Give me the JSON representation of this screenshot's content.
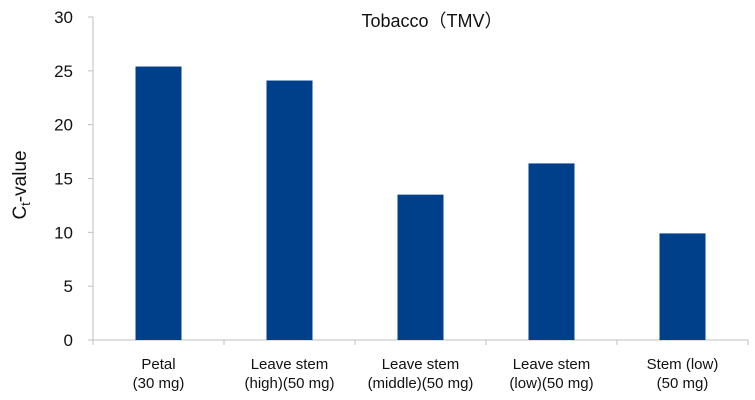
{
  "chart_data": {
    "type": "bar",
    "title": "Tobacco（TMV）",
    "ylabel": "Ct-value",
    "ylabel_main": "C",
    "ylabel_sub": "t",
    "ylabel_rest": "-value",
    "ylim": [
      0,
      30
    ],
    "yticks": [
      "0",
      "5",
      "10",
      "15",
      "20",
      "25",
      "30"
    ],
    "categories": [
      [
        "Petal",
        "(30 mg)"
      ],
      [
        "Leave stem",
        "(high)(50 mg)"
      ],
      [
        "Leave stem",
        "(middle)(50 mg)"
      ],
      [
        "Leave stem",
        "(low)(50 mg)"
      ],
      [
        "Stem (low)",
        "(50 mg)"
      ]
    ],
    "values": [
      25.4,
      24.1,
      13.5,
      16.4,
      9.9
    ],
    "bar_color": "#003f8a",
    "grid": false,
    "legend": "none"
  }
}
